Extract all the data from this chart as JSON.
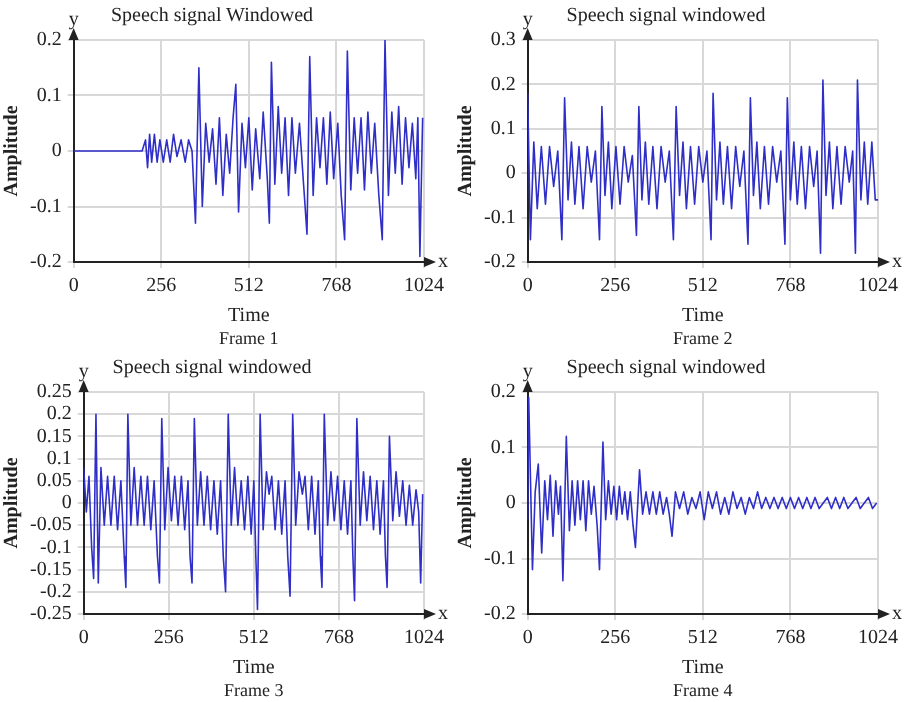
{
  "chart_data": [
    {
      "type": "line",
      "title": "Speech signal Windowed",
      "xlabel": "Time",
      "ylabel": "Amplitude",
      "annotations": [
        "y",
        "x",
        "Frame 1"
      ],
      "color": "#2f2fc8",
      "grid": true,
      "xlim": [
        0,
        1024
      ],
      "xticks": [
        0,
        256,
        512,
        768,
        1024
      ],
      "ylim": [
        -0.2,
        0.2
      ],
      "yticks": [
        -0.2,
        -0.1,
        0,
        0.1,
        0.2
      ],
      "x": [
        0,
        200,
        210,
        216,
        222,
        228,
        236,
        244,
        252,
        262,
        272,
        282,
        292,
        302,
        314,
        326,
        336,
        346,
        356,
        366,
        376,
        386,
        396,
        406,
        416,
        426,
        436,
        446,
        456,
        466,
        474,
        482,
        492,
        502,
        512,
        522,
        532,
        544,
        554,
        566,
        572,
        578,
        588,
        598,
        608,
        618,
        628,
        638,
        648,
        660,
        672,
        682,
        690,
        700,
        710,
        720,
        730,
        740,
        750,
        760,
        772,
        782,
        792,
        800,
        810,
        820,
        830,
        840,
        850,
        860,
        870,
        880,
        892,
        902,
        910,
        920,
        930,
        940,
        950,
        960,
        970,
        980,
        990,
        1000,
        1006,
        1012,
        1020
      ],
      "values": [
        0,
        0,
        0.02,
        -0.03,
        0.03,
        -0.02,
        0.03,
        -0.02,
        0.02,
        -0.02,
        0.02,
        -0.02,
        0.03,
        -0.01,
        0.02,
        -0.02,
        0.02,
        0,
        -0.13,
        0.15,
        -0.1,
        0.05,
        -0.02,
        0.04,
        -0.06,
        0.06,
        -0.08,
        0.03,
        -0.04,
        0.06,
        0.12,
        -0.11,
        0.05,
        -0.03,
        0.06,
        -0.07,
        0.04,
        -0.05,
        0.07,
        -0.05,
        -0.13,
        0.16,
        -0.06,
        0.08,
        -0.04,
        0.06,
        -0.08,
        0.06,
        -0.04,
        0.05,
        -0.06,
        -0.15,
        0.17,
        -0.08,
        0.06,
        -0.03,
        0.06,
        -0.06,
        0.07,
        -0.05,
        0.05,
        -0.08,
        -0.16,
        0.18,
        -0.07,
        0.06,
        -0.04,
        0.06,
        -0.07,
        0.07,
        -0.04,
        0.05,
        -0.08,
        -0.16,
        0.2,
        -0.08,
        0.07,
        -0.04,
        0.08,
        -0.06,
        0.06,
        -0.03,
        0.05,
        -0.05,
        0.06,
        -0.19,
        0.06
      ]
    },
    {
      "type": "line",
      "title": "Speech signal windowed",
      "xlabel": "Time",
      "ylabel": "Amplitude",
      "annotations": [
        "y",
        "x",
        "Frame 2"
      ],
      "color": "#2f2fc8",
      "grid": true,
      "xlim": [
        0,
        1024
      ],
      "xticks": [
        0,
        256,
        512,
        768,
        1024
      ],
      "ylim": [
        -0.2,
        0.3
      ],
      "yticks": [
        -0.2,
        -0.1,
        0,
        0.1,
        0.2,
        0.3
      ],
      "x": [
        0,
        8,
        18,
        28,
        40,
        52,
        64,
        76,
        88,
        100,
        108,
        118,
        128,
        138,
        150,
        162,
        174,
        186,
        198,
        210,
        217,
        226,
        236,
        246,
        258,
        270,
        282,
        294,
        306,
        318,
        325,
        334,
        344,
        354,
        366,
        378,
        390,
        402,
        414,
        426,
        434,
        444,
        454,
        464,
        476,
        488,
        500,
        512,
        524,
        536,
        542,
        552,
        562,
        572,
        584,
        596,
        608,
        620,
        632,
        644,
        651,
        660,
        670,
        680,
        692,
        704,
        716,
        728,
        740,
        752,
        759,
        768,
        778,
        788,
        800,
        812,
        824,
        836,
        846,
        856,
        863,
        872,
        882,
        892,
        904,
        916,
        928,
        940,
        950,
        958,
        964,
        974,
        984,
        994,
        1006,
        1016,
        1024
      ],
      "values": [
        0.18,
        -0.15,
        0.07,
        -0.08,
        0.06,
        -0.07,
        0.06,
        -0.03,
        0.05,
        -0.15,
        0.17,
        -0.06,
        0.07,
        -0.07,
        0.06,
        -0.08,
        0.06,
        -0.02,
        0.05,
        -0.15,
        0.15,
        -0.05,
        0.07,
        -0.08,
        0.06,
        -0.07,
        0.06,
        -0.02,
        0.04,
        -0.14,
        0.15,
        -0.06,
        0.07,
        -0.07,
        0.06,
        -0.08,
        0.06,
        -0.02,
        0.05,
        -0.15,
        0.15,
        -0.05,
        0.07,
        -0.08,
        0.06,
        -0.07,
        0.06,
        -0.02,
        0.05,
        -0.15,
        0.18,
        -0.06,
        0.07,
        -0.07,
        0.06,
        -0.08,
        0.06,
        -0.03,
        0.05,
        -0.16,
        0.17,
        -0.05,
        0.07,
        -0.08,
        0.06,
        -0.07,
        0.06,
        -0.02,
        0.05,
        -0.16,
        0.17,
        -0.06,
        0.07,
        -0.07,
        0.06,
        -0.08,
        0.06,
        -0.03,
        0.05,
        -0.18,
        0.21,
        -0.05,
        0.07,
        -0.08,
        0.06,
        -0.07,
        0.06,
        -0.02,
        0.05,
        -0.18,
        0.21,
        -0.06,
        0.07,
        -0.07,
        0.07,
        -0.06,
        -0.06
      ]
    },
    {
      "type": "line",
      "title": "Speech signal windowed",
      "xlabel": "Time",
      "ylabel": "Amplitude",
      "annotations": [
        "y",
        "x",
        "Frame 3"
      ],
      "color": "#2f2fc8",
      "grid": true,
      "xlim": [
        0,
        1024
      ],
      "xticks": [
        0,
        256,
        512,
        768,
        1024
      ],
      "ylim": [
        -0.25,
        0.25
      ],
      "yticks": [
        -0.25,
        -0.2,
        -0.15,
        -0.1,
        -0.05,
        0,
        0.05,
        0.1,
        0.15,
        0.2,
        0.25
      ],
      "x": [
        0,
        8,
        16,
        24,
        30,
        37,
        44,
        52,
        62,
        72,
        82,
        92,
        102,
        112,
        122,
        127,
        133,
        142,
        152,
        162,
        172,
        182,
        192,
        202,
        212,
        222,
        228,
        235,
        244,
        254,
        264,
        274,
        284,
        294,
        304,
        314,
        320,
        326,
        333,
        342,
        352,
        362,
        372,
        382,
        392,
        402,
        412,
        420,
        427,
        435,
        444,
        454,
        464,
        474,
        484,
        494,
        504,
        512,
        518,
        523,
        531,
        540,
        550,
        558,
        566,
        576,
        586,
        596,
        606,
        614,
        621,
        629,
        638,
        648,
        658,
        666,
        676,
        686,
        696,
        706,
        712,
        717,
        724,
        734,
        744,
        754,
        764,
        774,
        784,
        794,
        804,
        810,
        815,
        822,
        832,
        842,
        852,
        862,
        872,
        882,
        892,
        902,
        908,
        913,
        920,
        930,
        940,
        950,
        960,
        970,
        980,
        990,
        1000,
        1008,
        1014,
        1020
      ],
      "values": [
        0.08,
        -0.02,
        0.06,
        -0.1,
        -0.17,
        0.2,
        -0.18,
        0.08,
        -0.05,
        0.06,
        -0.05,
        0.06,
        -0.06,
        0.05,
        -0.12,
        -0.19,
        0.2,
        -0.05,
        0.08,
        -0.05,
        0.06,
        -0.05,
        0.06,
        -0.06,
        0.05,
        -0.12,
        -0.18,
        0.19,
        -0.06,
        0.08,
        -0.04,
        0.06,
        -0.05,
        0.06,
        -0.06,
        0.05,
        -0.12,
        -0.18,
        0.19,
        -0.05,
        0.07,
        -0.05,
        0.06,
        -0.06,
        0.05,
        -0.07,
        0.05,
        -0.12,
        -0.2,
        0.2,
        -0.05,
        0.08,
        -0.05,
        0.05,
        -0.06,
        0.06,
        -0.07,
        0.05,
        -0.12,
        -0.24,
        0.2,
        -0.06,
        0.07,
        0.02,
        0.06,
        -0.06,
        0.05,
        -0.07,
        0.05,
        -0.12,
        -0.21,
        0.2,
        -0.05,
        0.07,
        0.02,
        0.06,
        -0.06,
        0.06,
        -0.07,
        0.05,
        -0.12,
        -0.19,
        0.2,
        -0.05,
        0.07,
        -0.04,
        0.06,
        -0.06,
        0.05,
        -0.07,
        0.05,
        -0.12,
        -0.22,
        0.19,
        -0.05,
        0.07,
        -0.04,
        0.06,
        -0.06,
        0.05,
        -0.07,
        0.05,
        -0.12,
        -0.19,
        0.15,
        -0.04,
        0.07,
        -0.03,
        0.05,
        -0.05,
        0.04,
        -0.05,
        0.03,
        -0.02,
        -0.18,
        0.02
      ]
    },
    {
      "type": "line",
      "title": "Speech signal windowed",
      "xlabel": "Time",
      "ylabel": "Amplitude",
      "annotations": [
        "y",
        "x",
        "Frame 4"
      ],
      "color": "#2f2fc8",
      "grid": true,
      "xlim": [
        0,
        1024
      ],
      "xticks": [
        0,
        256,
        512,
        768,
        1024
      ],
      "ylim": [
        -0.2,
        0.2
      ],
      "yticks": [
        -0.2,
        -0.1,
        0,
        0.1,
        0.2
      ],
      "x": [
        0,
        3,
        8,
        14,
        22,
        31,
        41,
        50,
        58,
        66,
        74,
        82,
        90,
        96,
        103,
        113,
        122,
        130,
        138,
        146,
        154,
        162,
        170,
        178,
        186,
        194,
        203,
        210,
        220,
        228,
        236,
        244,
        252,
        260,
        268,
        276,
        284,
        292,
        300,
        308,
        315,
        327,
        336,
        346,
        356,
        366,
        376,
        386,
        396,
        406,
        414,
        422,
        432,
        444,
        456,
        468,
        480,
        492,
        504,
        516,
        528,
        540,
        552,
        564,
        576,
        588,
        600,
        612,
        624,
        636,
        648,
        660,
        672,
        684,
        696,
        708,
        720,
        732,
        744,
        756,
        768,
        780,
        792,
        804,
        816,
        828,
        840,
        852,
        864,
        876,
        888,
        900,
        912,
        924,
        936,
        948,
        960,
        972,
        984,
        996,
        1008,
        1020
      ],
      "values": [
        -0.03,
        0.19,
        0.05,
        -0.12,
        0.02,
        0.07,
        -0.09,
        0.04,
        -0.03,
        0.05,
        -0.06,
        0.04,
        -0.02,
        0.03,
        -0.14,
        0.12,
        -0.05,
        0.04,
        -0.04,
        0.04,
        -0.03,
        0.04,
        -0.05,
        0.04,
        -0.02,
        0.03,
        -0.04,
        -0.12,
        0.11,
        -0.03,
        0.04,
        -0.02,
        0.03,
        -0.03,
        0.03,
        -0.02,
        0.02,
        -0.03,
        0.02,
        -0.04,
        -0.08,
        0.06,
        -0.02,
        0.02,
        -0.02,
        0.02,
        -0.02,
        0.02,
        -0.02,
        0.01,
        -0.02,
        -0.06,
        0.02,
        -0.01,
        0.02,
        -0.02,
        0.01,
        -0.01,
        0.02,
        -0.03,
        0.02,
        -0.01,
        0.02,
        -0.02,
        0.01,
        -0.02,
        0.02,
        -0.01,
        0.01,
        -0.02,
        0.01,
        -0.01,
        0.02,
        -0.01,
        0.01,
        -0.01,
        0.01,
        -0.01,
        0.01,
        -0.01,
        0.01,
        -0.01,
        0.01,
        -0.01,
        0.01,
        -0.01,
        0.01,
        -0.01,
        0,
        0.01,
        -0.01,
        0.01,
        -0.01,
        0.01,
        -0.01,
        0,
        0.01,
        -0.01,
        0,
        0.01,
        -0.01,
        0
      ]
    }
  ]
}
